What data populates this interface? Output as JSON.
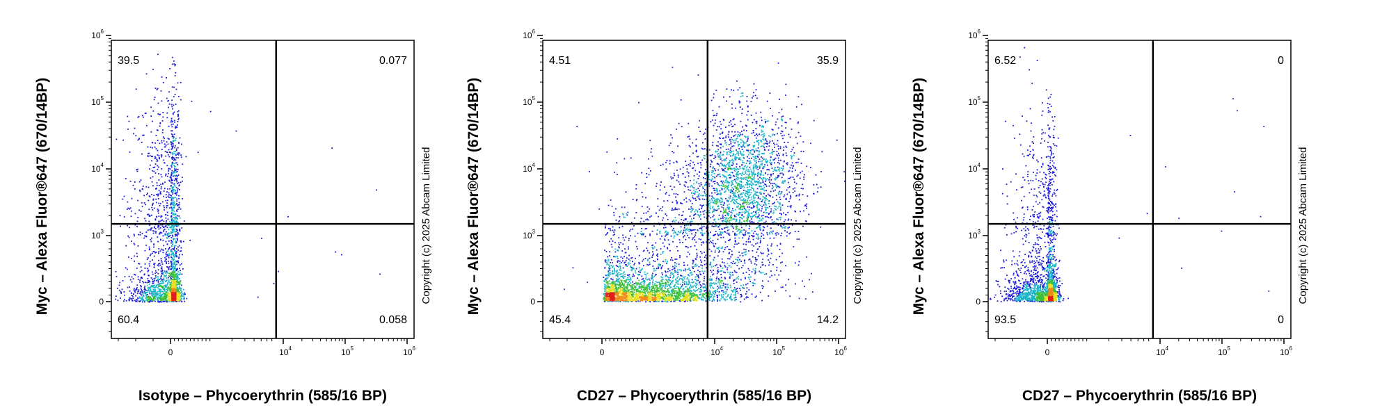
{
  "chart_data": [
    {
      "type": "scatter",
      "xlabel": "Isotype – Phycoerythrin (585/16 BP)",
      "ylabel": "Myc – Alexa Fluor®647 (670/14BP)",
      "x_ticks": [
        "0",
        "10^4",
        "10^5",
        "10^6"
      ],
      "y_ticks": [
        "0",
        "10^3",
        "10^4",
        "10^5",
        "10^6"
      ],
      "gate": {
        "x": 8000,
        "y": 1500
      },
      "quadrants": {
        "top_left": "39.5",
        "top_right": "0.077",
        "bottom_left": "60.4",
        "bottom_right": "0.058"
      },
      "copyright": "Copyright (c) 2025 Abcam Limited",
      "clusters": [
        {
          "x": 0,
          "y": 3000,
          "sx": 0.1,
          "sy": 0.9,
          "n": 900
        },
        {
          "x": 0,
          "y": 200,
          "sx": 0.1,
          "sy": 0.55,
          "n": 1300
        }
      ]
    },
    {
      "type": "scatter",
      "xlabel": "CD27 – Phycoerythrin (585/16 BP)",
      "ylabel": "Myc – Alexa Fluor®647 (670/14BP)",
      "x_ticks": [
        "0",
        "10^4",
        "10^5",
        "10^6"
      ],
      "y_ticks": [
        "0",
        "10^3",
        "10^4",
        "10^5",
        "10^6"
      ],
      "gate": {
        "x": 8000,
        "y": 1500
      },
      "quadrants": {
        "top_left": "4.51",
        "top_right": "35.9",
        "bottom_left": "45.4",
        "bottom_right": "14.2"
      },
      "copyright": "Copyright (c) 2025 Abcam Limited",
      "clusters": [
        {
          "x": 1000,
          "y": 150,
          "sx": 0.55,
          "sy": 0.45,
          "n": 2200
        },
        {
          "x": 30000,
          "y": 6000,
          "sx": 0.45,
          "sy": 0.55,
          "n": 2000
        },
        {
          "x": 8000,
          "y": 1000,
          "sx": 0.55,
          "sy": 0.6,
          "n": 900
        }
      ]
    },
    {
      "type": "scatter",
      "xlabel": "CD27 – Phycoerythrin (585/16 BP)",
      "ylabel": "Myc – Alexa Fluor®647 (670/14BP)",
      "x_ticks": [
        "0",
        "10^4",
        "10^5",
        "10^6"
      ],
      "y_ticks": [
        "0",
        "10^3",
        "10^4",
        "10^5",
        "10^6"
      ],
      "gate": {
        "x": 8000,
        "y": 1500
      },
      "quadrants": {
        "top_left": "6.52",
        "top_right": "0",
        "bottom_left": "93.5",
        "bottom_right": "0"
      },
      "copyright": "Copyright (c) 2025 Abcam Limited",
      "clusters": [
        {
          "x": 0,
          "y": 150,
          "sx": 0.1,
          "sy": 0.45,
          "n": 1700
        },
        {
          "x": 0,
          "y": 2500,
          "sx": 0.09,
          "sy": 0.8,
          "n": 500
        }
      ]
    }
  ]
}
